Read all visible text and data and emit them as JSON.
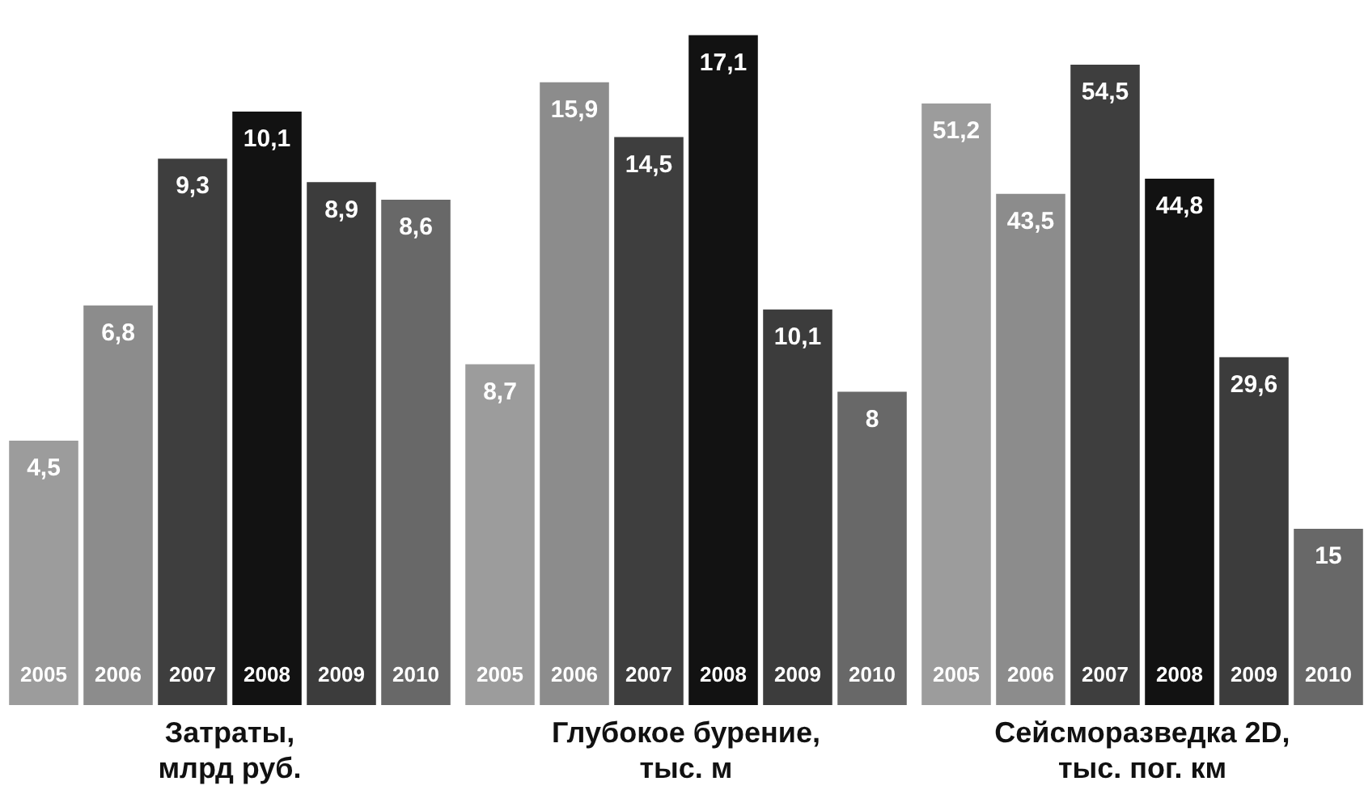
{
  "chart_data": [
    {
      "type": "bar",
      "title": "Затраты, млрд руб.",
      "categories": [
        "2005",
        "2006",
        "2007",
        "2008",
        "2009",
        "2010"
      ],
      "values": [
        4.5,
        6.8,
        9.3,
        10.1,
        8.9,
        8.6
      ],
      "value_labels": [
        "4,5",
        "6,8",
        "9,3",
        "10,1",
        "8,9",
        "8,6"
      ],
      "colors": [
        "#9c9c9c",
        "#8c8c8c",
        "#3e3e3e",
        "#121212",
        "#3c3c3c",
        "#686868"
      ],
      "tick_labels": "x"
    },
    {
      "type": "bar",
      "title": "Глубокое бурение, тыс. м",
      "categories": [
        "2005",
        "2006",
        "2007",
        "2008",
        "2009",
        "2010"
      ],
      "values": [
        8.7,
        15.9,
        14.5,
        17.1,
        10.1,
        8
      ],
      "value_labels": [
        "8,7",
        "15,9",
        "14,5",
        "17,1",
        "10,1",
        "8"
      ],
      "colors": [
        "#9c9c9c",
        "#8c8c8c",
        "#3e3e3e",
        "#121212",
        "#3c3c3c",
        "#686868"
      ],
      "tick_labels": "x"
    },
    {
      "type": "bar",
      "title": "Сейсморазведка 2D, тыс. пог. км",
      "categories": [
        "2005",
        "2006",
        "2007",
        "2008",
        "2009",
        "2010"
      ],
      "values": [
        51.2,
        43.5,
        54.5,
        44.8,
        29.6,
        15
      ],
      "value_labels": [
        "51,2",
        "43,5",
        "54,5",
        "44,8",
        "29,6",
        "15"
      ],
      "colors": [
        "#9c9c9c",
        "#8c8c8c",
        "#3e3e3e",
        "#121212",
        "#3c3c3c",
        "#686868"
      ],
      "tick_labels": "x"
    }
  ]
}
